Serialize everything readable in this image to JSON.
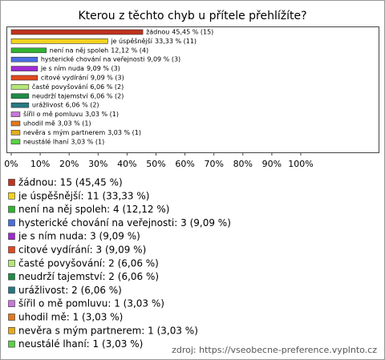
{
  "chart_data": {
    "type": "bar",
    "orientation": "horizontal",
    "title": "Kterou z těchto chyb u přítele přehlížíte?",
    "categories": [
      "žádnou",
      "je úspěšnější",
      "není na něj spoleh",
      "hysterické chování na veřejnosti",
      "je s ním nuda",
      "citové vydírání",
      "časté povyšování",
      "neudrží tajemství",
      "urážlivost",
      "šířil o mě pomluvu",
      "uhodil mě",
      "nevěra s mým partnerem",
      "neustálé lhaní"
    ],
    "values": [
      45.45,
      33.33,
      12.12,
      9.09,
      9.09,
      9.09,
      6.06,
      6.06,
      6.06,
      3.03,
      3.03,
      3.03,
      3.03
    ],
    "value_labels": [
      "45,45 % (15)",
      "33,33 % (11)",
      "12,12 % (4)",
      "9,09 % (3)",
      "9,09 % (3)",
      "9,09 % (3)",
      "6,06 % (2)",
      "6,06 % (2)",
      "6,06 % (2)",
      "3,03 % (1)",
      "3,03 % (1)",
      "3,03 % (1)",
      "3,03 % (1)"
    ],
    "colors": [
      "#c0321e",
      "#f2d21e",
      "#32b432",
      "#4a6ee0",
      "#a02ad2",
      "#e04a1e",
      "#b4e678",
      "#1e8c46",
      "#287882",
      "#c878d8",
      "#e0781e",
      "#e6aa1e",
      "#5ad246"
    ],
    "legend_labels": [
      "žádnou: 15 (45,45 %)",
      "je úspěšnější: 11 (33,33 %)",
      "není na něj spoleh: 4 (12,12 %)",
      "hysterické chování na veřejnosti: 3 (9,09 %)",
      "je s ním nuda: 3 (9,09 %)",
      "citové vydírání: 3 (9,09 %)",
      "časté povyšování: 2 (6,06 %)",
      "neudrží tajemství: 2 (6,06 %)",
      "urážlivost: 2 (6,06 %)",
      "šířil o mě pomluvu: 1 (3,03 %)",
      "uhodil mě: 1 (3,03 %)",
      "nevěra s mým partnerem: 1 (3,03 %)",
      "neustálé lhaní: 1 (3,03 %)"
    ],
    "xlim": [
      0,
      100
    ],
    "xticks": [
      {
        "value": 0,
        "label": "0%"
      },
      {
        "value": 10,
        "label": "10%"
      },
      {
        "value": 20,
        "label": "20%"
      },
      {
        "value": 30,
        "label": "30%"
      },
      {
        "value": 40,
        "label": "40%"
      },
      {
        "value": 50,
        "label": "50%"
      },
      {
        "value": 60,
        "label": "60%"
      },
      {
        "value": 70,
        "label": "70%"
      },
      {
        "value": 80,
        "label": "80%"
      },
      {
        "value": 90,
        "label": "90%"
      },
      {
        "value": 100,
        "label": "100%"
      }
    ],
    "grid": false,
    "source": "zdroj: https://vseobecne-preference.vyplnto.cz"
  }
}
